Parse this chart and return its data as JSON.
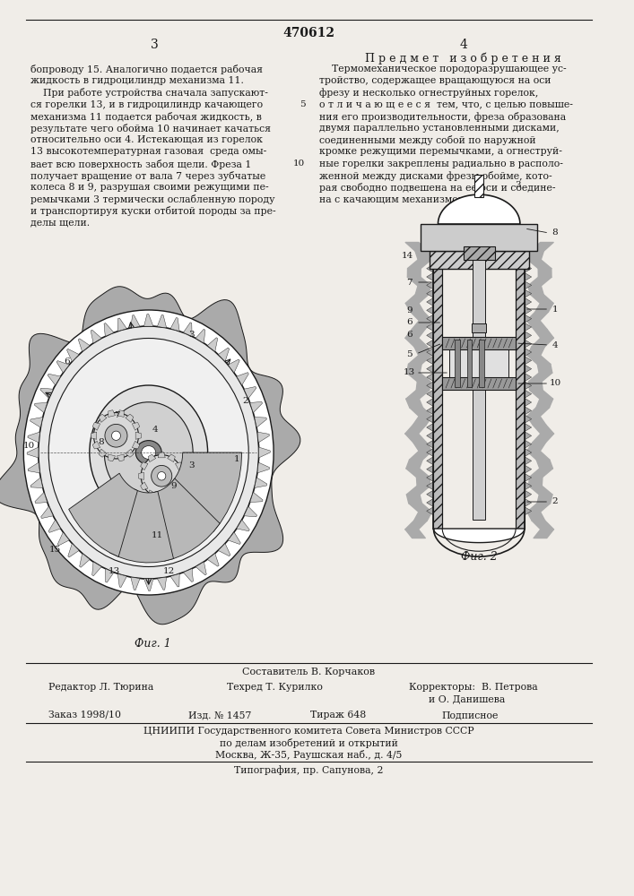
{
  "patent_number": "470612",
  "background_color": "#f0ede8",
  "text_color": "#1a1a1a",
  "title_predmet": "П р е д м е т   и з о б р е т е н и я",
  "left_column_text": [
    "бопроводу 15. Аналогично подается рабочая",
    "жидкость в гидроцилиндр механизма 11.",
    "    При работе устройства сначала запускают-",
    "ся горелки 13, и в гидроцилиндр качающего",
    "механизма 11 подается рабочая жидкость, в",
    "результате чего обойма 10 начинает качаться",
    "относительно оси 4. Истекающая из горелок",
    "13 высокотемпературная газовая  среда омы-",
    "вает всю поверхность забоя щели. Фреза 1",
    "получает вращение от вала 7 через зубчатые",
    "колеса 8 и 9, разрушая своими режущими пе-",
    "ремычками 3 термически ослабленную породу",
    "и транспортируя куски отбитой породы за пре-",
    "делы щели."
  ],
  "right_column_text": [
    "    Термомеханическое породоразрушающее ус-",
    "тройство, содержащее вращающуюся на оси",
    "фрезу и несколько огнеструйных горелок,",
    "о т л и ч а ю щ е е с я  тем, что, с целью повыше-",
    "ния его производительности, фреза образована",
    "двумя параллельно установленными дисками,",
    "соединенными между собой по наружной",
    "кромке режущими перемычками, а огнеструй-",
    "ные горелки закреплены радиально в располо-",
    "женной между дисками фрезы обойме, кото-",
    "рая свободно подвешена на ее оси и соедине-",
    "на с качающим механизмом."
  ],
  "fig1_caption": "Фиг. 1",
  "fig2_caption": "Фиг. 2",
  "bottom_line1": "Составитель В. Корчаков",
  "bottom_editor": "Редактор Л. Тюрина",
  "bottom_tech": "Техред Т. Курилко",
  "bottom_correctors": "Корректоры:  В. Петрова",
  "bottom_correctors2": "и О. Данишева",
  "bottom_order": "Заказ 1998/10",
  "bottom_izd": "Изд. № 1457",
  "bottom_tirazh": "Тираж 648",
  "bottom_podpisnoe": "Подписное",
  "bottom_tsniip": "ЦНИИПИ Государственного комитета Совета Министров СССР",
  "bottom_po_delam": "по делам изобретений и открытий",
  "bottom_address": "Москва, Ж-35, Раушская наб., д. 4/5",
  "bottom_tipografia": "Типография, пр. Сапунова, 2"
}
